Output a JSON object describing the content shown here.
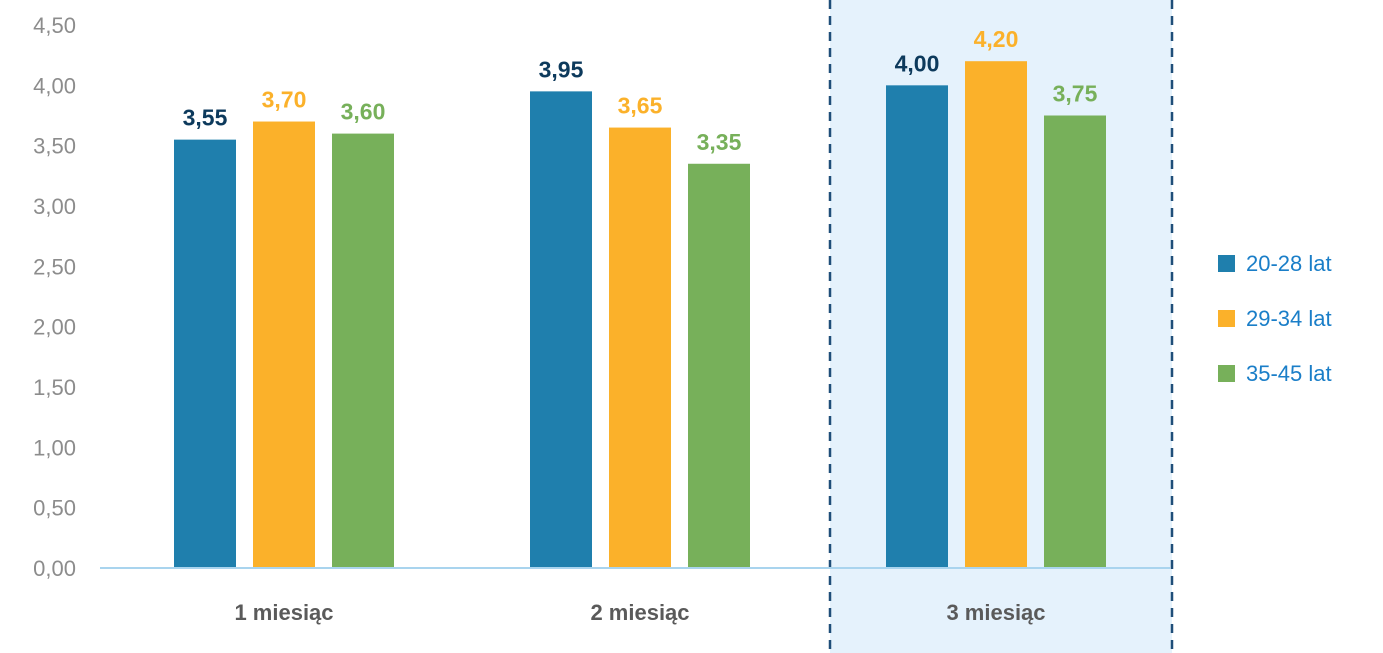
{
  "chart_data": {
    "type": "bar",
    "categories": [
      "1 miesiąc",
      "2 miesiąc",
      "3 miesiąc"
    ],
    "series": [
      {
        "name": "20-28 lat",
        "values": [
          3.55,
          3.95,
          4.0
        ],
        "color": "#1f7fad",
        "label_color": "#0d3a5c"
      },
      {
        "name": "29-34 lat",
        "values": [
          3.7,
          3.65,
          4.2
        ],
        "color": "#fbb12a",
        "label_color": "#fbb12a"
      },
      {
        "name": "35-45 lat",
        "values": [
          3.6,
          3.35,
          3.75
        ],
        "color": "#77b05a",
        "label_color": "#77b05a"
      }
    ],
    "data_labels": [
      [
        "3,55",
        "3,95",
        "4,00"
      ],
      [
        "3,70",
        "3,65",
        "4,20"
      ],
      [
        "3,60",
        "3,35",
        "3,75"
      ]
    ],
    "y_ticks": [
      "0,00",
      "0,50",
      "1,00",
      "1,50",
      "2,00",
      "2,50",
      "3,00",
      "3,50",
      "4,00",
      "4,50"
    ],
    "ylim": [
      0,
      4.5
    ],
    "title": "",
    "xlabel": "",
    "ylabel": "",
    "grid": false,
    "legend_position": "right",
    "legend_text_color": "#1a7ec8",
    "highlighted_category": "3 miesiąc",
    "highlight_fill": "#e5f2fc",
    "highlight_border": "#1f4e79",
    "axis_color": "#a9d4ee",
    "tick_color": "#8c8c8c",
    "category_label_color": "#5a5a5a"
  }
}
